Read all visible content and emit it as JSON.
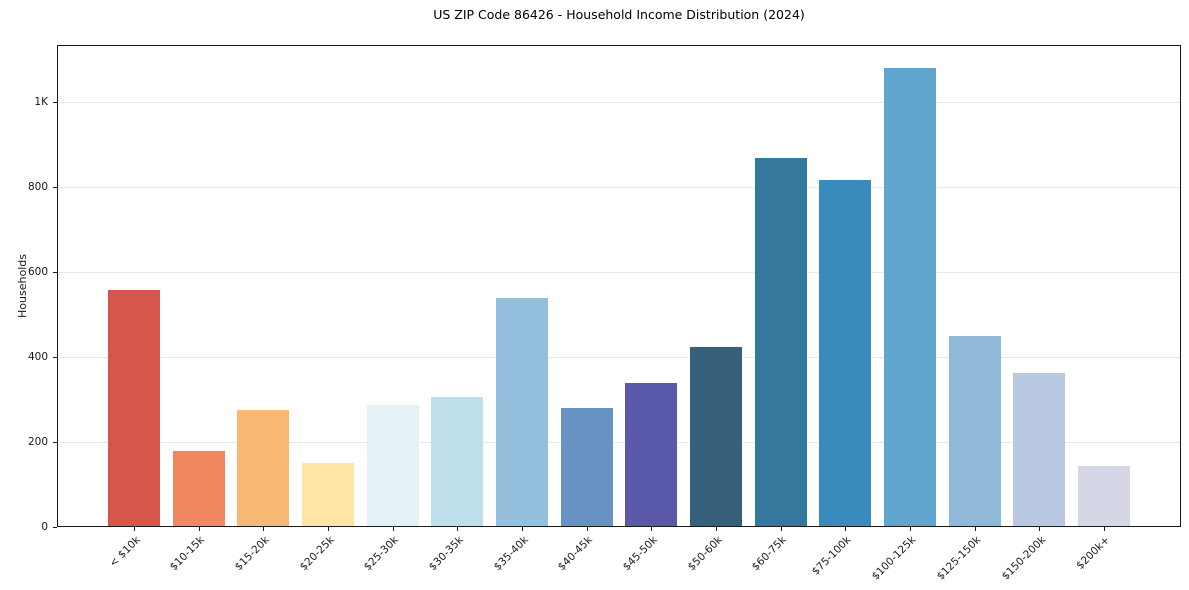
{
  "title": "US ZIP Code 86426 - Household Income Distribution (2024)",
  "chart_data": {
    "type": "bar",
    "title": "US ZIP Code 86426 - Household Income Distribution (2024)",
    "xlabel": "",
    "ylabel": "Households",
    "categories": [
      "< $10k",
      "$10-15k",
      "$15-20k",
      "$20-25k",
      "$25-30k",
      "$30-35k",
      "$35-40k",
      "$40-45k",
      "$45-50k",
      "$50-60k",
      "$60-75k",
      "$75-100k",
      "$100-125k",
      "$125-150k",
      "$150-200k",
      "$200k+"
    ],
    "values": [
      557,
      178,
      275,
      150,
      286,
      305,
      538,
      280,
      338,
      424,
      868,
      817,
      1080,
      449,
      362,
      144
    ],
    "bar_colors": [
      "#d6564e",
      "#f0875f",
      "#f9b873",
      "#fde5a4",
      "#e4f1f6",
      "#bedfeb",
      "#94c0dd",
      "#6992c4",
      "#5a59a9",
      "#36607a",
      "#35789e",
      "#398abd",
      "#5fa5cd",
      "#90b8d9",
      "#b9c9e1",
      "#d6d7e6"
    ],
    "ylim": [
      0,
      1134
    ],
    "yticks": [
      {
        "value": 0,
        "label": "0"
      },
      {
        "value": 200,
        "label": "200"
      },
      {
        "value": 400,
        "label": "400"
      },
      {
        "value": 600,
        "label": "600"
      },
      {
        "value": 800,
        "label": "800"
      },
      {
        "value": 1000,
        "label": "1K"
      }
    ],
    "grid": "horizontal",
    "legend": "none",
    "x_tick_rotation": 45
  },
  "colors": {
    "background": "#ffffff",
    "grid": "#e8e8e8",
    "spine": "#1a1a1a",
    "text": "#1a1a1a"
  }
}
